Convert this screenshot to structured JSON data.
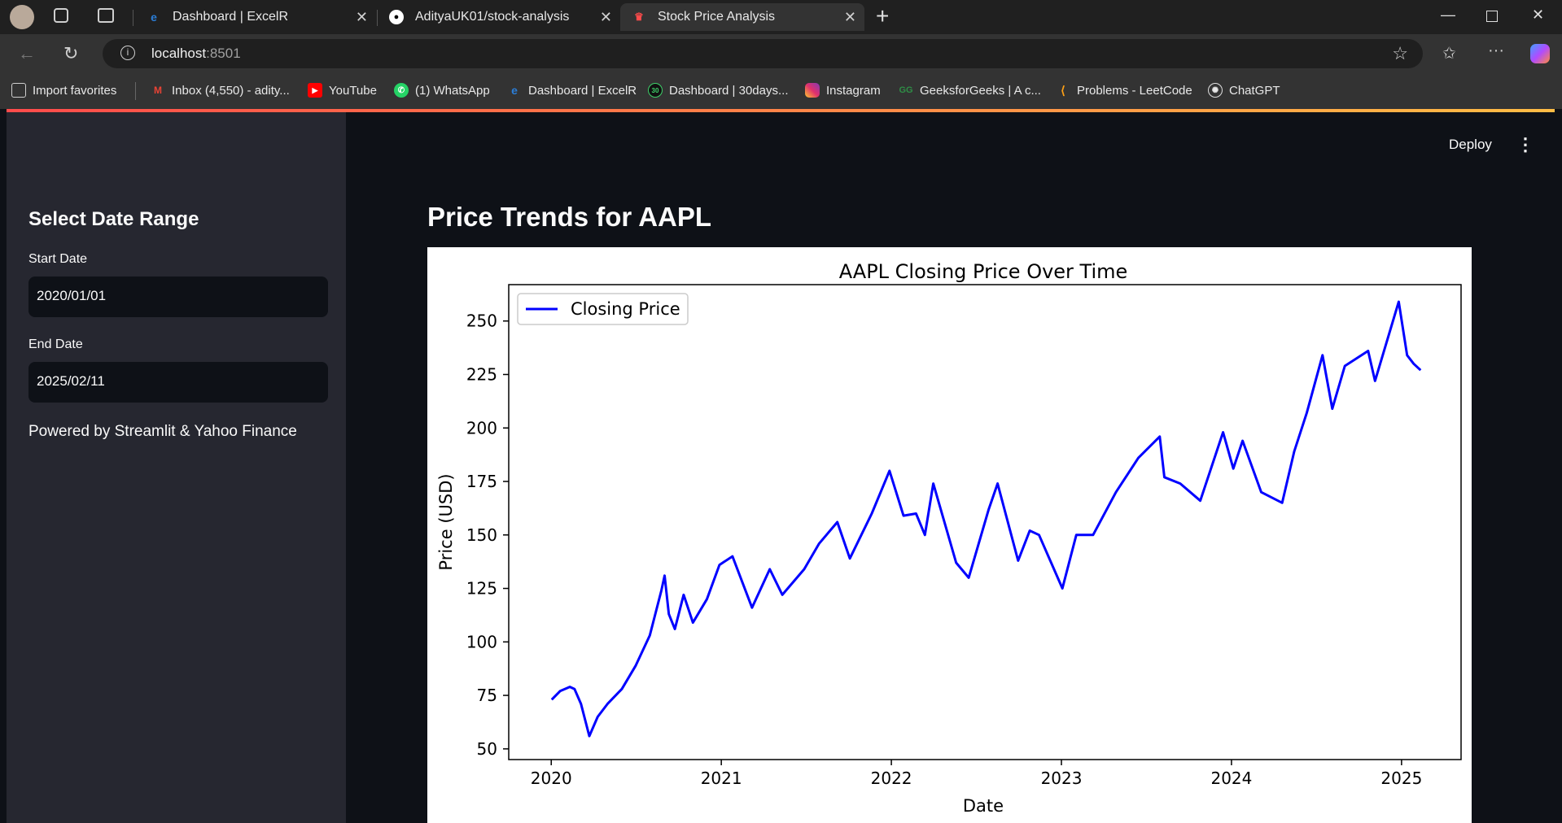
{
  "browser": {
    "tabs": [
      {
        "title": "Dashboard | ExcelR",
        "icon": "excelr-icon",
        "active": false
      },
      {
        "title": "AdityaUK01/stock-analysis",
        "icon": "github-icon",
        "active": false
      },
      {
        "title": "Stock Price Analysis",
        "icon": "streamlit-icon",
        "active": true
      }
    ],
    "address": {
      "host": "localhost",
      "port": ":8501"
    },
    "bookmarks": [
      {
        "label": "Import favorites",
        "icon": "import-icon"
      },
      {
        "label": "Inbox (4,550) - adity...",
        "icon": "gmail-icon"
      },
      {
        "label": "YouTube",
        "icon": "youtube-icon"
      },
      {
        "label": "(1) WhatsApp",
        "icon": "whatsapp-icon"
      },
      {
        "label": "Dashboard | ExcelR",
        "icon": "excelr-icon"
      },
      {
        "label": "Dashboard | 30days...",
        "icon": "30days-icon"
      },
      {
        "label": "Instagram",
        "icon": "instagram-icon"
      },
      {
        "label": "GeeksforGeeks | A c...",
        "icon": "gfg-icon"
      },
      {
        "label": "Problems - LeetCode",
        "icon": "leetcode-icon"
      },
      {
        "label": "ChatGPT",
        "icon": "chatgpt-icon"
      }
    ]
  },
  "sidebar": {
    "title": "Select Date Range",
    "start_label": "Start Date",
    "start_value": "2020/01/01",
    "end_label": "End Date",
    "end_value": "2025/02/11",
    "footer": "Powered by Streamlit & Yahoo Finance"
  },
  "header": {
    "deploy_label": "Deploy",
    "menu_icon": "kebab-menu-icon"
  },
  "main": {
    "title": "Price Trends for AAPL"
  },
  "colors": {
    "line": "#0000ff",
    "sidebar_bg": "#262730",
    "app_bg": "#0e1117",
    "accent": "#ff4b4b"
  },
  "chart_data": {
    "type": "line",
    "title": "AAPL Closing Price Over Time",
    "xlabel": "Date",
    "ylabel": "Price (USD)",
    "legend": "top-left",
    "grid": false,
    "xlim": [
      2019.75,
      2025.35
    ],
    "ylim": [
      45,
      267
    ],
    "x_ticks": [
      "2020",
      "2021",
      "2022",
      "2023",
      "2024",
      "2025"
    ],
    "y_ticks": [
      50,
      75,
      100,
      125,
      150,
      175,
      200,
      225,
      250
    ],
    "series": [
      {
        "name": "Closing Price",
        "color": "#0000ff",
        "points": [
          [
            "2020-01-02",
            73
          ],
          [
            "2020-01-20",
            77
          ],
          [
            "2020-02-10",
            79
          ],
          [
            "2020-02-20",
            78
          ],
          [
            "2020-03-05",
            71
          ],
          [
            "2020-03-23",
            56
          ],
          [
            "2020-04-10",
            65
          ],
          [
            "2020-05-01",
            71
          ],
          [
            "2020-06-01",
            78
          ],
          [
            "2020-07-01",
            89
          ],
          [
            "2020-07-31",
            103
          ],
          [
            "2020-08-25",
            124
          ],
          [
            "2020-09-01",
            131
          ],
          [
            "2020-09-10",
            113
          ],
          [
            "2020-09-23",
            106
          ],
          [
            "2020-10-12",
            122
          ],
          [
            "2020-11-01",
            109
          ],
          [
            "2020-12-01",
            120
          ],
          [
            "2020-12-28",
            136
          ],
          [
            "2021-01-25",
            140
          ],
          [
            "2021-03-08",
            116
          ],
          [
            "2021-04-15",
            134
          ],
          [
            "2021-05-12",
            122
          ],
          [
            "2021-06-28",
            134
          ],
          [
            "2021-07-30",
            146
          ],
          [
            "2021-09-07",
            156
          ],
          [
            "2021-10-04",
            139
          ],
          [
            "2021-11-20",
            160
          ],
          [
            "2021-12-28",
            180
          ],
          [
            "2022-01-27",
            159
          ],
          [
            "2022-02-23",
            160
          ],
          [
            "2022-03-14",
            150
          ],
          [
            "2022-04-01",
            174
          ],
          [
            "2022-05-20",
            137
          ],
          [
            "2022-06-16",
            130
          ],
          [
            "2022-07-29",
            162
          ],
          [
            "2022-08-17",
            174
          ],
          [
            "2022-09-30",
            138
          ],
          [
            "2022-10-25",
            152
          ],
          [
            "2022-11-14",
            150
          ],
          [
            "2023-01-03",
            125
          ],
          [
            "2023-02-02",
            150
          ],
          [
            "2023-03-10",
            150
          ],
          [
            "2023-04-28",
            170
          ],
          [
            "2023-06-15",
            186
          ],
          [
            "2023-07-31",
            196
          ],
          [
            "2023-08-10",
            177
          ],
          [
            "2023-09-13",
            174
          ],
          [
            "2023-10-26",
            166
          ],
          [
            "2023-12-14",
            198
          ],
          [
            "2024-01-05",
            181
          ],
          [
            "2024-01-25",
            194
          ],
          [
            "2024-03-05",
            170
          ],
          [
            "2024-04-19",
            165
          ],
          [
            "2024-05-15",
            189
          ],
          [
            "2024-06-11",
            207
          ],
          [
            "2024-07-15",
            234
          ],
          [
            "2024-08-05",
            209
          ],
          [
            "2024-09-01",
            229
          ],
          [
            "2024-10-21",
            236
          ],
          [
            "2024-11-05",
            222
          ],
          [
            "2024-12-26",
            259
          ],
          [
            "2025-01-13",
            234
          ],
          [
            "2025-01-27",
            230
          ],
          [
            "2025-02-11",
            227
          ]
        ]
      }
    ]
  }
}
